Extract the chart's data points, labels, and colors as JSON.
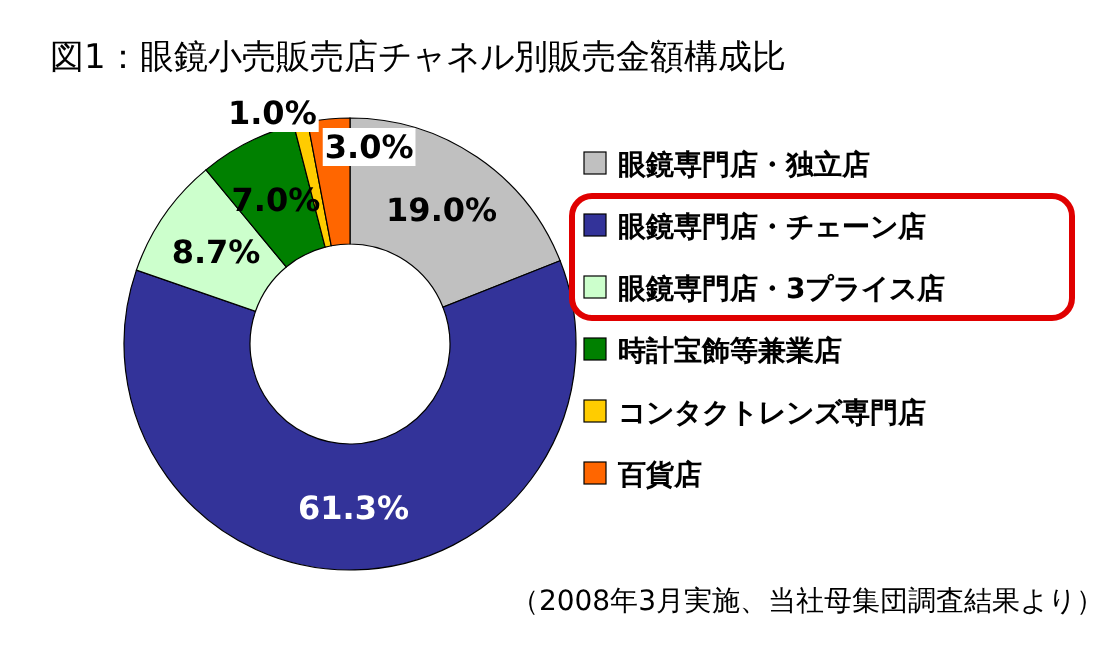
{
  "chart_data": {
    "type": "donut",
    "title": "図1：眼鏡小売販売店チャネル別販売金額構成比",
    "categories": [
      "眼鏡専門店・独立店",
      "眼鏡専門店・チェーン店",
      "眼鏡専門店・3プライス店",
      "時計宝飾等兼業店",
      "コンタクトレンズ専門店",
      "百貨店"
    ],
    "values": [
      19.0,
      61.3,
      8.7,
      7.0,
      1.0,
      3.0
    ],
    "colors": [
      "#c0c0c0",
      "#333399",
      "#ccffcc",
      "#008000",
      "#ffcc00",
      "#ff6600"
    ],
    "value_labels": [
      "19.0%",
      "61.3%",
      "8.7%",
      "7.0%",
      "1.0%",
      "3.0%"
    ],
    "legend": "right",
    "annotations": [
      "（2008年3月実施、当社母集団調査結果より）"
    ]
  }
}
